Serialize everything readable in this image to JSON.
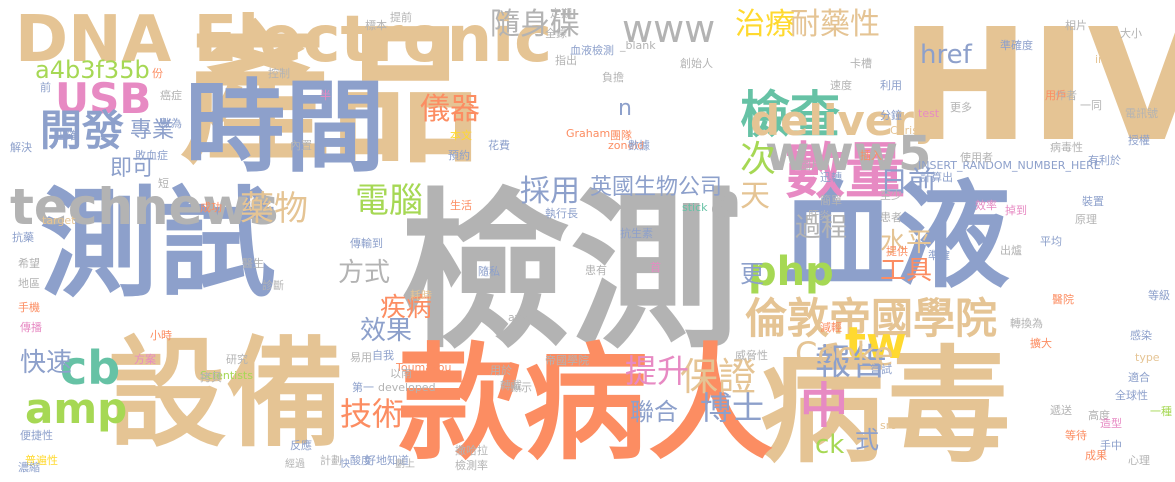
{
  "word_cloud": {
    "words": [
      {
        "text": "檢測",
        "color": "#b3b3b3"
      },
      {
        "text": "產品",
        "color": "#e5c494"
      },
      {
        "text": "HIV",
        "color": "#e5c494"
      },
      {
        "text": "時間",
        "color": "#8da0cb"
      },
      {
        "text": "測試",
        "color": "#8da0cb"
      },
      {
        "text": "血液",
        "color": "#8da0cb"
      },
      {
        "text": "病毒",
        "color": "#e5c494"
      },
      {
        "text": "款病人",
        "color": "#fc8d62"
      },
      {
        "text": "設備",
        "color": "#e5c494"
      },
      {
        "text": "DNA Electronic",
        "color": "#e5c494"
      },
      {
        "text": "technews",
        "color": "#b3b3b3"
      },
      {
        "text": "數量",
        "color": "#e78ac3"
      },
      {
        "text": "檢查",
        "color": "#66c2a5"
      },
      {
        "text": "www",
        "color": "#b3b3b3"
      },
      {
        "text": "delivery",
        "color": "#e5c494"
      },
      {
        "text": "倫敦帝國學院",
        "color": "#e5c494"
      },
      {
        "text": "www5",
        "color": "#b3b3b3"
      },
      {
        "text": "USB",
        "color": "#e78ac3"
      },
      {
        "text": "開發",
        "color": "#8da0cb"
      },
      {
        "text": "amp",
        "color": "#a6d854"
      },
      {
        "text": "cb",
        "color": "#66c2a5"
      },
      {
        "text": "中",
        "color": "#e78ac3"
      },
      {
        "text": "tw",
        "color": "#ffd92f"
      },
      {
        "text": "php",
        "color": "#a6d854"
      },
      {
        "text": "a",
        "color": "#b3b3b3"
      },
      {
        "text": "次",
        "color": "#a6d854"
      },
      {
        "text": "報告",
        "color": "#8da0cb"
      },
      {
        "text": "保證",
        "color": "#e5c494"
      },
      {
        "text": "提升",
        "color": "#e78ac3"
      },
      {
        "text": "技術",
        "color": "#fc8d62"
      },
      {
        "text": "博士",
        "color": "#8da0cb"
      },
      {
        "text": "Cooke",
        "color": "#e5c494"
      },
      {
        "text": "治療",
        "color": "#ffd92f"
      },
      {
        "text": "耐藥性",
        "color": "#e5c494"
      },
      {
        "text": "隨身碟",
        "color": "#b3b3b3"
      },
      {
        "text": "電腦",
        "color": "#a6d854"
      },
      {
        "text": "藥物",
        "color": "#e5c494"
      },
      {
        "text": "採用",
        "color": "#8da0cb"
      },
      {
        "text": "過程",
        "color": "#b3b3b3"
      },
      {
        "text": "方式",
        "color": "#b3b3b3"
      },
      {
        "text": "效果",
        "color": "#8da0cb"
      },
      {
        "text": "快速",
        "color": "#8da0cb"
      },
      {
        "text": "儀器",
        "color": "#fc8d62"
      },
      {
        "text": "專業",
        "color": "#8da0cb"
      },
      {
        "text": "a4b3f35b",
        "color": "#a6d854"
      },
      {
        "text": "即可",
        "color": "#8da0cb"
      },
      {
        "text": "英國生物公司",
        "color": "#8da0cb"
      },
      {
        "text": "聯合",
        "color": "#8da0cb"
      },
      {
        "text": "天",
        "color": "#e5c494"
      },
      {
        "text": "日前",
        "color": "#8da0cb"
      },
      {
        "text": "水平",
        "color": "#e5c494"
      },
      {
        "text": "工具",
        "color": "#fc8d62"
      },
      {
        "text": "疾病",
        "color": "#fc8d62"
      },
      {
        "text": "href",
        "color": "#8da0cb"
      },
      {
        "text": "ck",
        "color": "#a6d854"
      },
      {
        "text": "更",
        "color": "#8da0cb"
      },
      {
        "text": "式",
        "color": "#8da0cb"
      },
      {
        "text": "n",
        "color": "#8da0cb"
      },
      {
        "text": "短",
        "color": "#b3b3b3"
      },
      {
        "text": "成功",
        "color": "#fc8d62"
      },
      {
        "text": "執行長",
        "color": "#8da0cb"
      },
      {
        "text": "抗生素",
        "color": "#8da0cb"
      },
      {
        "text": "血液檢測",
        "color": "#8da0cb"
      },
      {
        "text": "developed",
        "color": "#b3b3b3"
      },
      {
        "text": "Scientists",
        "color": "#a6d854"
      },
      {
        "text": "Graham",
        "color": "#fc8d62"
      },
      {
        "text": "Toumazou",
        "color": "#fc8d62"
      },
      {
        "text": "Chris",
        "color": "#e5c494"
      },
      {
        "text": "INSERT_RANDOM_NUMBER_HERE",
        "color": "#8da0cb"
      },
      {
        "text": "target",
        "color": "#e5c494"
      },
      {
        "text": "stick",
        "color": "#66c2a5"
      },
      {
        "text": "test",
        "color": "#e78ac3"
      },
      {
        "text": "img",
        "color": "#e5c494"
      },
      {
        "text": "type",
        "color": "#e5c494"
      },
      {
        "text": "src",
        "color": "#e5c494"
      },
      {
        "text": "_blank",
        "color": "#b3b3b3"
      },
      {
        "text": "zoneid",
        "color": "#fc8d62"
      },
      {
        "text": "avw",
        "color": "#b3b3b3"
      },
      {
        "text": "帝國學院",
        "color": "#b3b3b3"
      },
      {
        "text": "撒哈拉",
        "color": "#b3b3b3"
      },
      {
        "text": "檢測率",
        "color": "#b3b3b3"
      },
      {
        "text": "好地知道",
        "color": "#8da0cb"
      },
      {
        "text": "便捷性",
        "color": "#8da0cb"
      },
      {
        "text": "普遍性",
        "color": "#ffd92f"
      },
      {
        "text": "抗藥",
        "color": "#8da0cb"
      },
      {
        "text": "希望",
        "color": "#b3b3b3"
      },
      {
        "text": "地區",
        "color": "#b3b3b3"
      },
      {
        "text": "手機",
        "color": "#fc8d62"
      },
      {
        "text": "傳播",
        "color": "#e78ac3"
      },
      {
        "text": "解決",
        "color": "#8da0cb"
      },
      {
        "text": "正確",
        "color": "#8da0cb"
      },
      {
        "text": "敗血症",
        "color": "#8da0cb"
      },
      {
        "text": "內置",
        "color": "#b3b3b3"
      },
      {
        "text": "傳輸到",
        "color": "#8da0cb"
      },
      {
        "text": "診斷",
        "color": "#b3b3b3"
      },
      {
        "text": "花費",
        "color": "#8da0cb"
      },
      {
        "text": "本文",
        "color": "#ffd92f"
      },
      {
        "text": "團隊",
        "color": "#fc8d62"
      },
      {
        "text": "預約",
        "color": "#8da0cb"
      },
      {
        "text": "生活",
        "color": "#fc8d62"
      },
      {
        "text": "隨私",
        "color": "#8da0cb"
      },
      {
        "text": "醫生",
        "color": "#b3b3b3"
      },
      {
        "text": "研究",
        "color": "#b3b3b3"
      },
      {
        "text": "方案",
        "color": "#e78ac3"
      },
      {
        "text": "小時",
        "color": "#fc8d62"
      },
      {
        "text": "耗時",
        "color": "#e5c494"
      },
      {
        "text": "易用",
        "color": "#b3b3b3"
      },
      {
        "text": "自我",
        "color": "#8da0cb"
      },
      {
        "text": "轉載",
        "color": "#b3b3b3"
      },
      {
        "text": "用於",
        "color": "#b3b3b3"
      },
      {
        "text": "第一",
        "color": "#8da0cb"
      },
      {
        "text": "以南",
        "color": "#b3b3b3"
      },
      {
        "text": "顯示",
        "color": "#b3b3b3"
      },
      {
        "text": "威脅性",
        "color": "#b3b3b3"
      },
      {
        "text": "減輕",
        "color": "#fc8d62"
      },
      {
        "text": "嘗試",
        "color": "#8da0cb"
      },
      {
        "text": "高度",
        "color": "#b3b3b3"
      },
      {
        "text": "適合",
        "color": "#8da0cb"
      },
      {
        "text": "全球性",
        "color": "#8da0cb"
      },
      {
        "text": "等級",
        "color": "#8da0cb"
      },
      {
        "text": "醫院",
        "color": "#fc8d62"
      },
      {
        "text": "平均",
        "color": "#8da0cb"
      },
      {
        "text": "準確",
        "color": "#8da0cb"
      },
      {
        "text": "提供",
        "color": "#fc8d62"
      },
      {
        "text": "患有",
        "color": "#b3b3b3"
      },
      {
        "text": "首",
        "color": "#e78ac3"
      },
      {
        "text": "效率",
        "color": "#e78ac3"
      },
      {
        "text": "原理",
        "color": "#b3b3b3"
      },
      {
        "text": "裝置",
        "color": "#8da0cb"
      },
      {
        "text": "有利於",
        "color": "#8da0cb"
      },
      {
        "text": "授權",
        "color": "#8da0cb"
      },
      {
        "text": "電訊號",
        "color": "#b3b3b3"
      },
      {
        "text": "作者",
        "color": "#b3b3b3"
      },
      {
        "text": "更多",
        "color": "#b3b3b3"
      },
      {
        "text": "分鐘",
        "color": "#8da0cb"
      },
      {
        "text": "利用",
        "color": "#8da0cb"
      },
      {
        "text": "速度",
        "color": "#b3b3b3"
      },
      {
        "text": "卡槽",
        "color": "#b3b3b3"
      },
      {
        "text": "準確度",
        "color": "#8da0cb"
      },
      {
        "text": "相片",
        "color": "#b3b3b3"
      },
      {
        "text": "大小",
        "color": "#b3b3b3"
      },
      {
        "text": "定期",
        "color": "#b3b3b3"
      },
      {
        "text": "全錄",
        "color": "#b3b3b3"
      },
      {
        "text": "指出",
        "color": "#b3b3b3"
      },
      {
        "text": "創始人",
        "color": "#b3b3b3"
      },
      {
        "text": "負擔",
        "color": "#b3b3b3"
      },
      {
        "text": "插入",
        "color": "#fc8d62"
      },
      {
        "text": "圖片",
        "color": "#b3b3b3"
      },
      {
        "text": "計算出",
        "color": "#8da0cb"
      },
      {
        "text": "掉到",
        "color": "#e78ac3"
      },
      {
        "text": "使用者",
        "color": "#b3b3b3"
      },
      {
        "text": "用戶",
        "color": "#fc8d62"
      },
      {
        "text": "一同",
        "color": "#b3b3b3"
      },
      {
        "text": "半",
        "color": "#e78ac3"
      },
      {
        "text": "年",
        "color": "#e5c494"
      },
      {
        "text": "控制",
        "color": "#b3b3b3"
      },
      {
        "text": "提前",
        "color": "#b3b3b3"
      },
      {
        "text": "數據",
        "color": "#8da0cb"
      },
      {
        "text": "標本",
        "color": "#b3b3b3"
      },
      {
        "text": "份",
        "color": "#fc8d62"
      },
      {
        "text": "癌症",
        "color": "#b3b3b3"
      },
      {
        "text": "數為",
        "color": "#8da0cb"
      },
      {
        "text": "前",
        "color": "#8da0cb"
      },
      {
        "text": "患者",
        "color": "#b3b3b3"
      },
      {
        "text": "擴大",
        "color": "#fc8d62"
      },
      {
        "text": "感染",
        "color": "#8da0cb"
      },
      {
        "text": "轉換為",
        "color": "#b3b3b3"
      },
      {
        "text": "等待",
        "color": "#fc8d62"
      },
      {
        "text": "成果",
        "color": "#fc8d62"
      },
      {
        "text": "心理",
        "color": "#b3b3b3"
      },
      {
        "text": "酸度",
        "color": "#8da0cb"
      },
      {
        "text": "計劃",
        "color": "#b3b3b3"
      },
      {
        "text": "反應",
        "color": "#8da0cb"
      },
      {
        "text": "濃縮",
        "color": "#8da0cb"
      },
      {
        "text": "至少",
        "color": "#b3b3b3"
      },
      {
        "text": "迅轉",
        "color": "#8da0cb"
      },
      {
        "text": "簡單",
        "color": "#b3b3b3"
      },
      {
        "text": "肝炎",
        "color": "#b3b3b3"
      },
      {
        "text": "拷貝",
        "color": "#b3b3b3"
      },
      {
        "text": "病毒性",
        "color": "#b3b3b3"
      },
      {
        "text": "造型",
        "color": "#e78ac3"
      },
      {
        "text": "手中",
        "color": "#8da0cb"
      },
      {
        "text": "遞送",
        "color": "#b3b3b3"
      },
      {
        "text": "一種",
        "color": "#a6d854"
      },
      {
        "text": "出爐",
        "color": "#b3b3b3"
      },
      {
        "text": "經過",
        "color": "#b3b3b3"
      },
      {
        "text": "快",
        "color": "#8da0cb"
      },
      {
        "text": "劃上",
        "color": "#b3b3b3"
      }
    ]
  }
}
